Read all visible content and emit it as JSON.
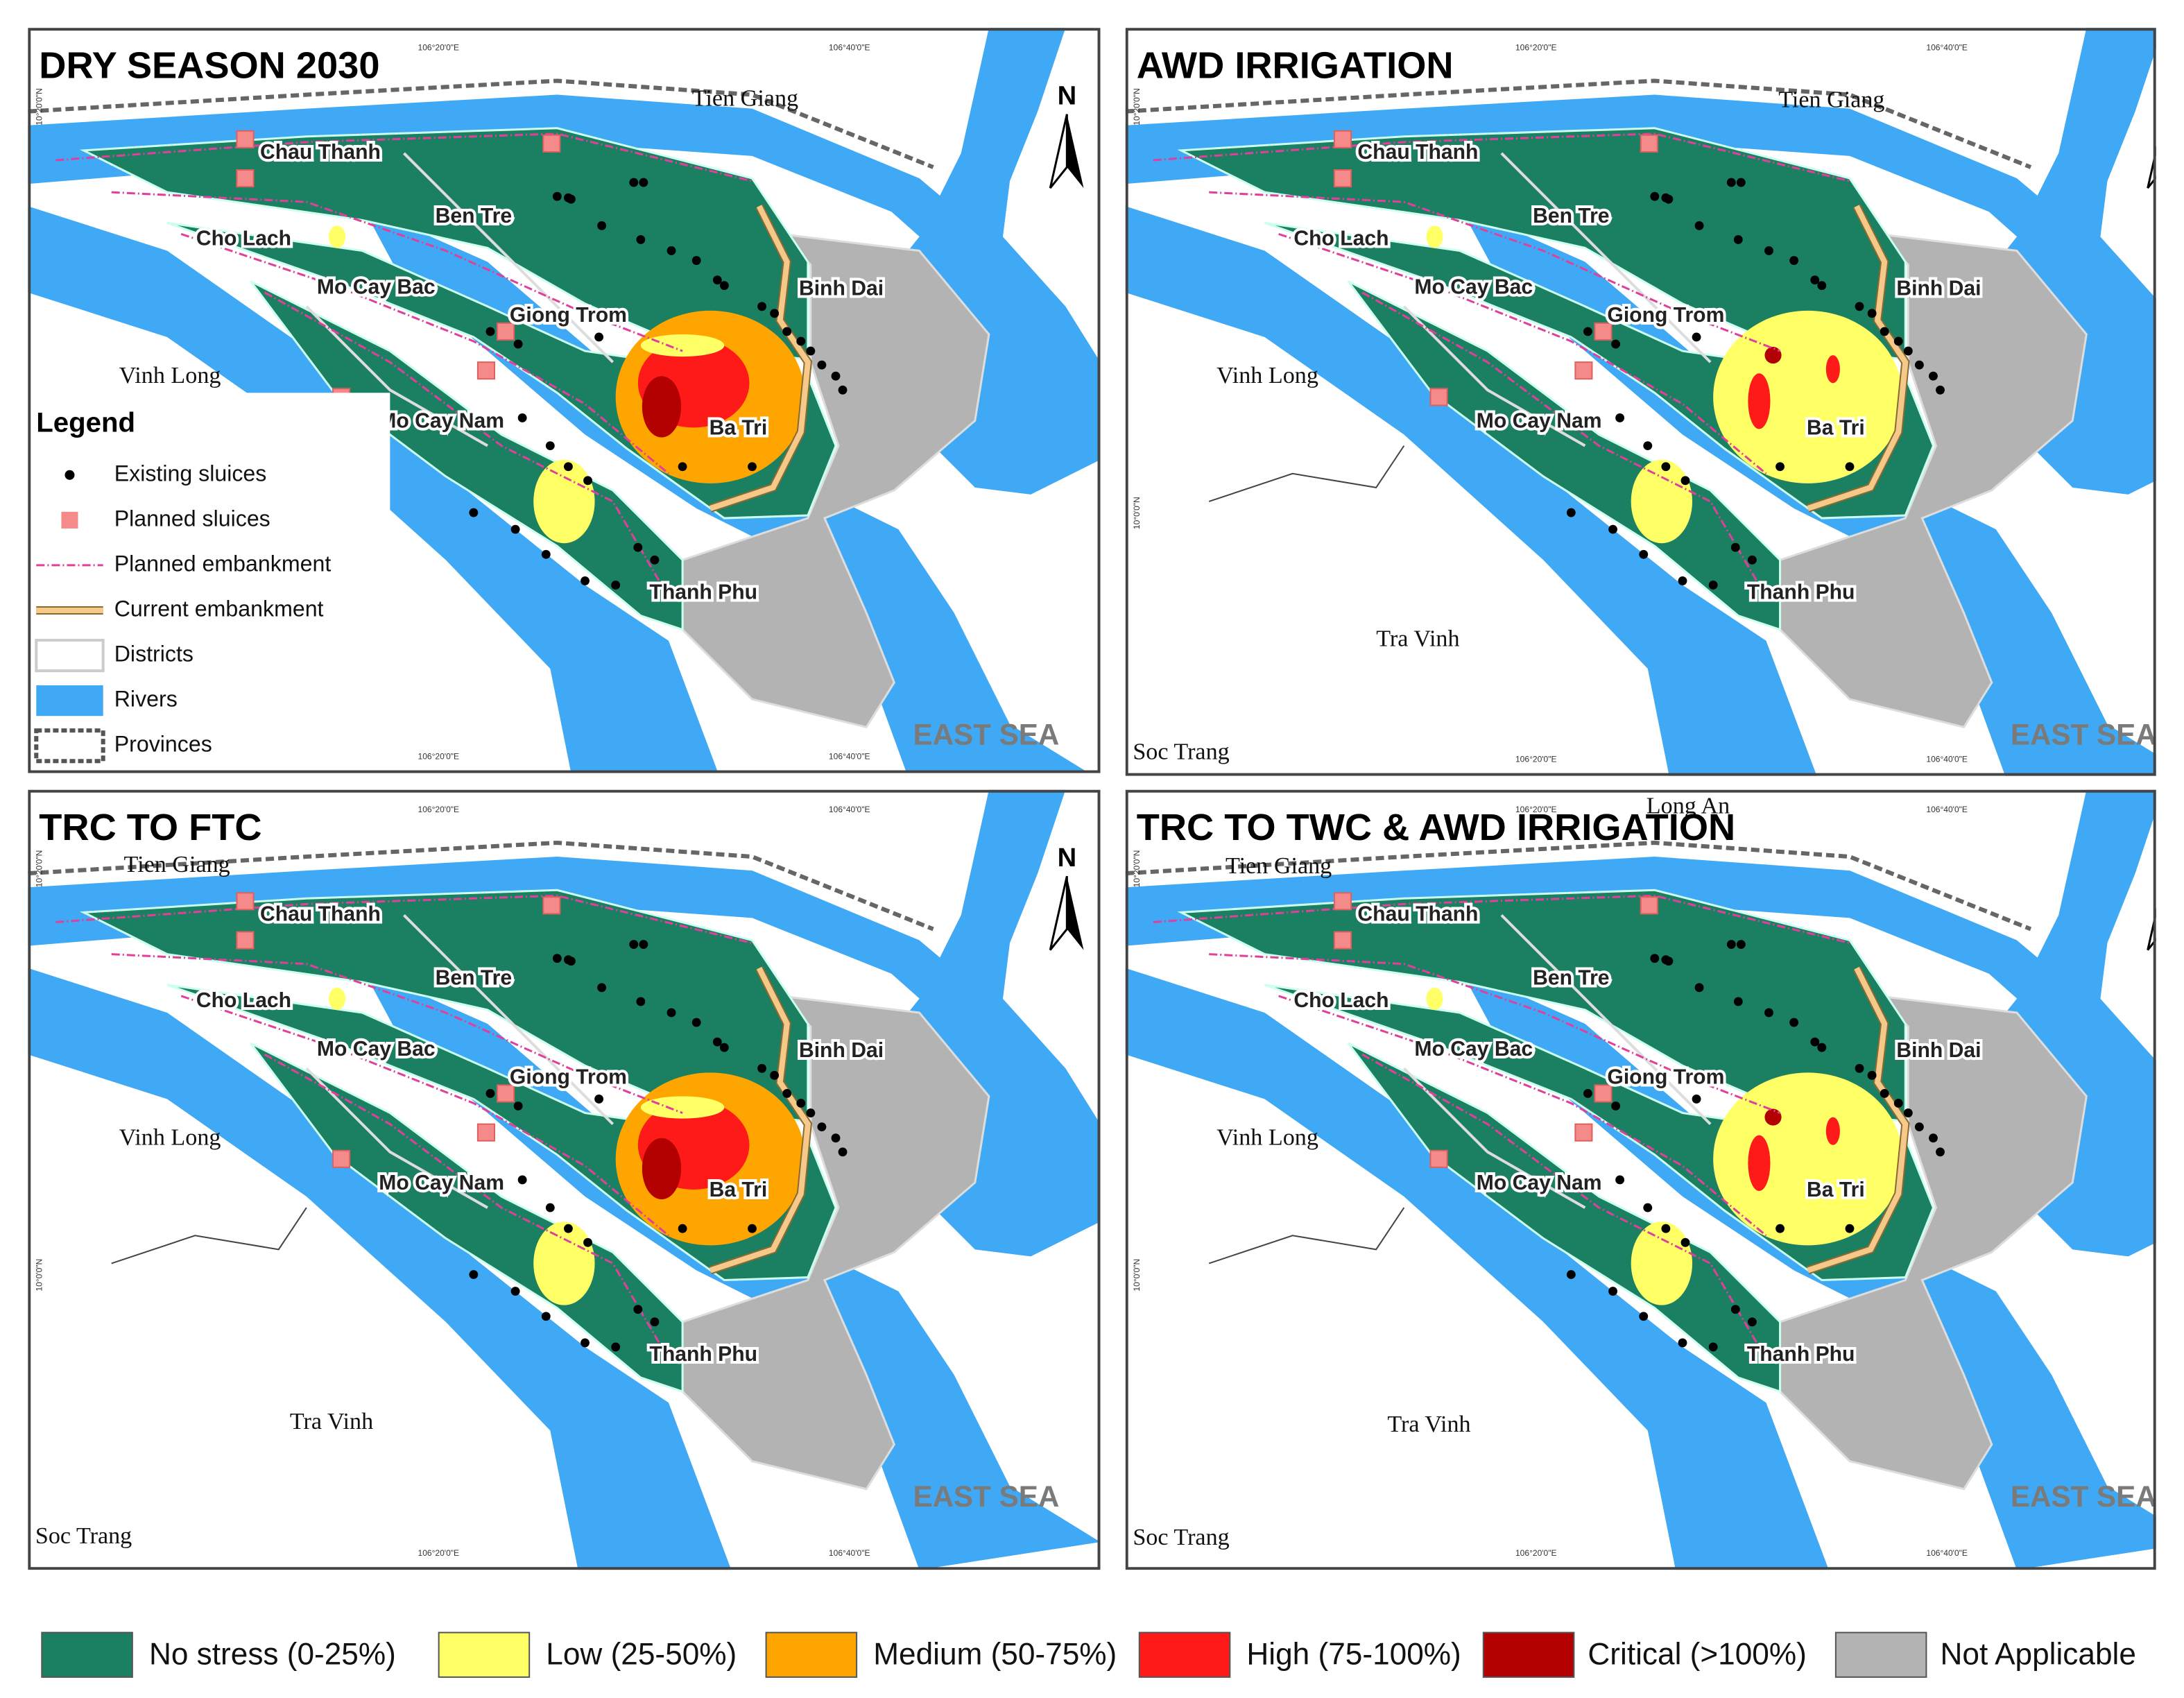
{
  "panels": [
    {
      "title": "DRY SEASON 2030",
      "places": [
        "Chau Thanh",
        "Ben Tre",
        "Cho Lach",
        "Mo Cay Bac",
        "Giong Trom",
        "Binh Dai",
        "Vinh Long",
        "Mo Cay Nam",
        "Ba Tri",
        "Thanh Phu",
        "EAST SEA",
        "N",
        "Tien Giang"
      ]
    },
    {
      "title": "AWD IRRIGATION",
      "places": [
        "Chau Thanh",
        "Ben Tre",
        "Cho Lach",
        "Mo Cay Bac",
        "Giong Trom",
        "Binh Dai",
        "Vinh Long",
        "Mo Cay Nam",
        "Ba Tri",
        "Thanh Phu",
        "EAST SEA",
        "N",
        "Tien Giang",
        "Tra Vinh",
        "Soc Trang"
      ]
    },
    {
      "title": "TRC TO FTC",
      "places": [
        "Chau Thanh",
        "Ben Tre",
        "Cho Lach",
        "Mo Cay Bac",
        "Giong Trom",
        "Binh Dai",
        "Vinh Long",
        "Mo Cay Nam",
        "Ba Tri",
        "Thanh Phu",
        "EAST SEA",
        "N",
        "Tien Giang",
        "Tra Vinh",
        "Soc Trang"
      ]
    },
    {
      "title": "TRC TO TWC & AWD IRRIGATION",
      "places": [
        "Chau Thanh",
        "Ben Tre",
        "Cho Lach",
        "Mo Cay Bac",
        "Giong Trom",
        "Binh Dai",
        "Vinh Long",
        "Mo Cay Nam",
        "Ba Tri",
        "Thanh Phu",
        "EAST SEA",
        "N",
        "Tien Giang",
        "Tra Vinh",
        "Soc Trang",
        "Long An"
      ]
    }
  ],
  "graticule": [
    "106°20'0\"E",
    "106°40'0\"E",
    "10°20'0\"N",
    "10°0'0\"N"
  ],
  "panel_legend": {
    "title": "Legend",
    "items": [
      "Existing sluices",
      "Planned sluices",
      "Planned embankment",
      "Current embankment",
      "Districts",
      "Rivers",
      "Provinces"
    ]
  },
  "stress_legend": [
    {
      "label": "No stress (0-25%)",
      "color": "#1b7f62"
    },
    {
      "label": "Low (25-50%)",
      "color": "#ffff66"
    },
    {
      "label": "Medium (50-75%)",
      "color": "#ffa500"
    },
    {
      "label": "High (75-100%)",
      "color": "#ff1a1a"
    },
    {
      "label": "Critical (>100%)",
      "color": "#b30000"
    },
    {
      "label": "Not Applicable",
      "color": "#b3b3b3"
    }
  ]
}
